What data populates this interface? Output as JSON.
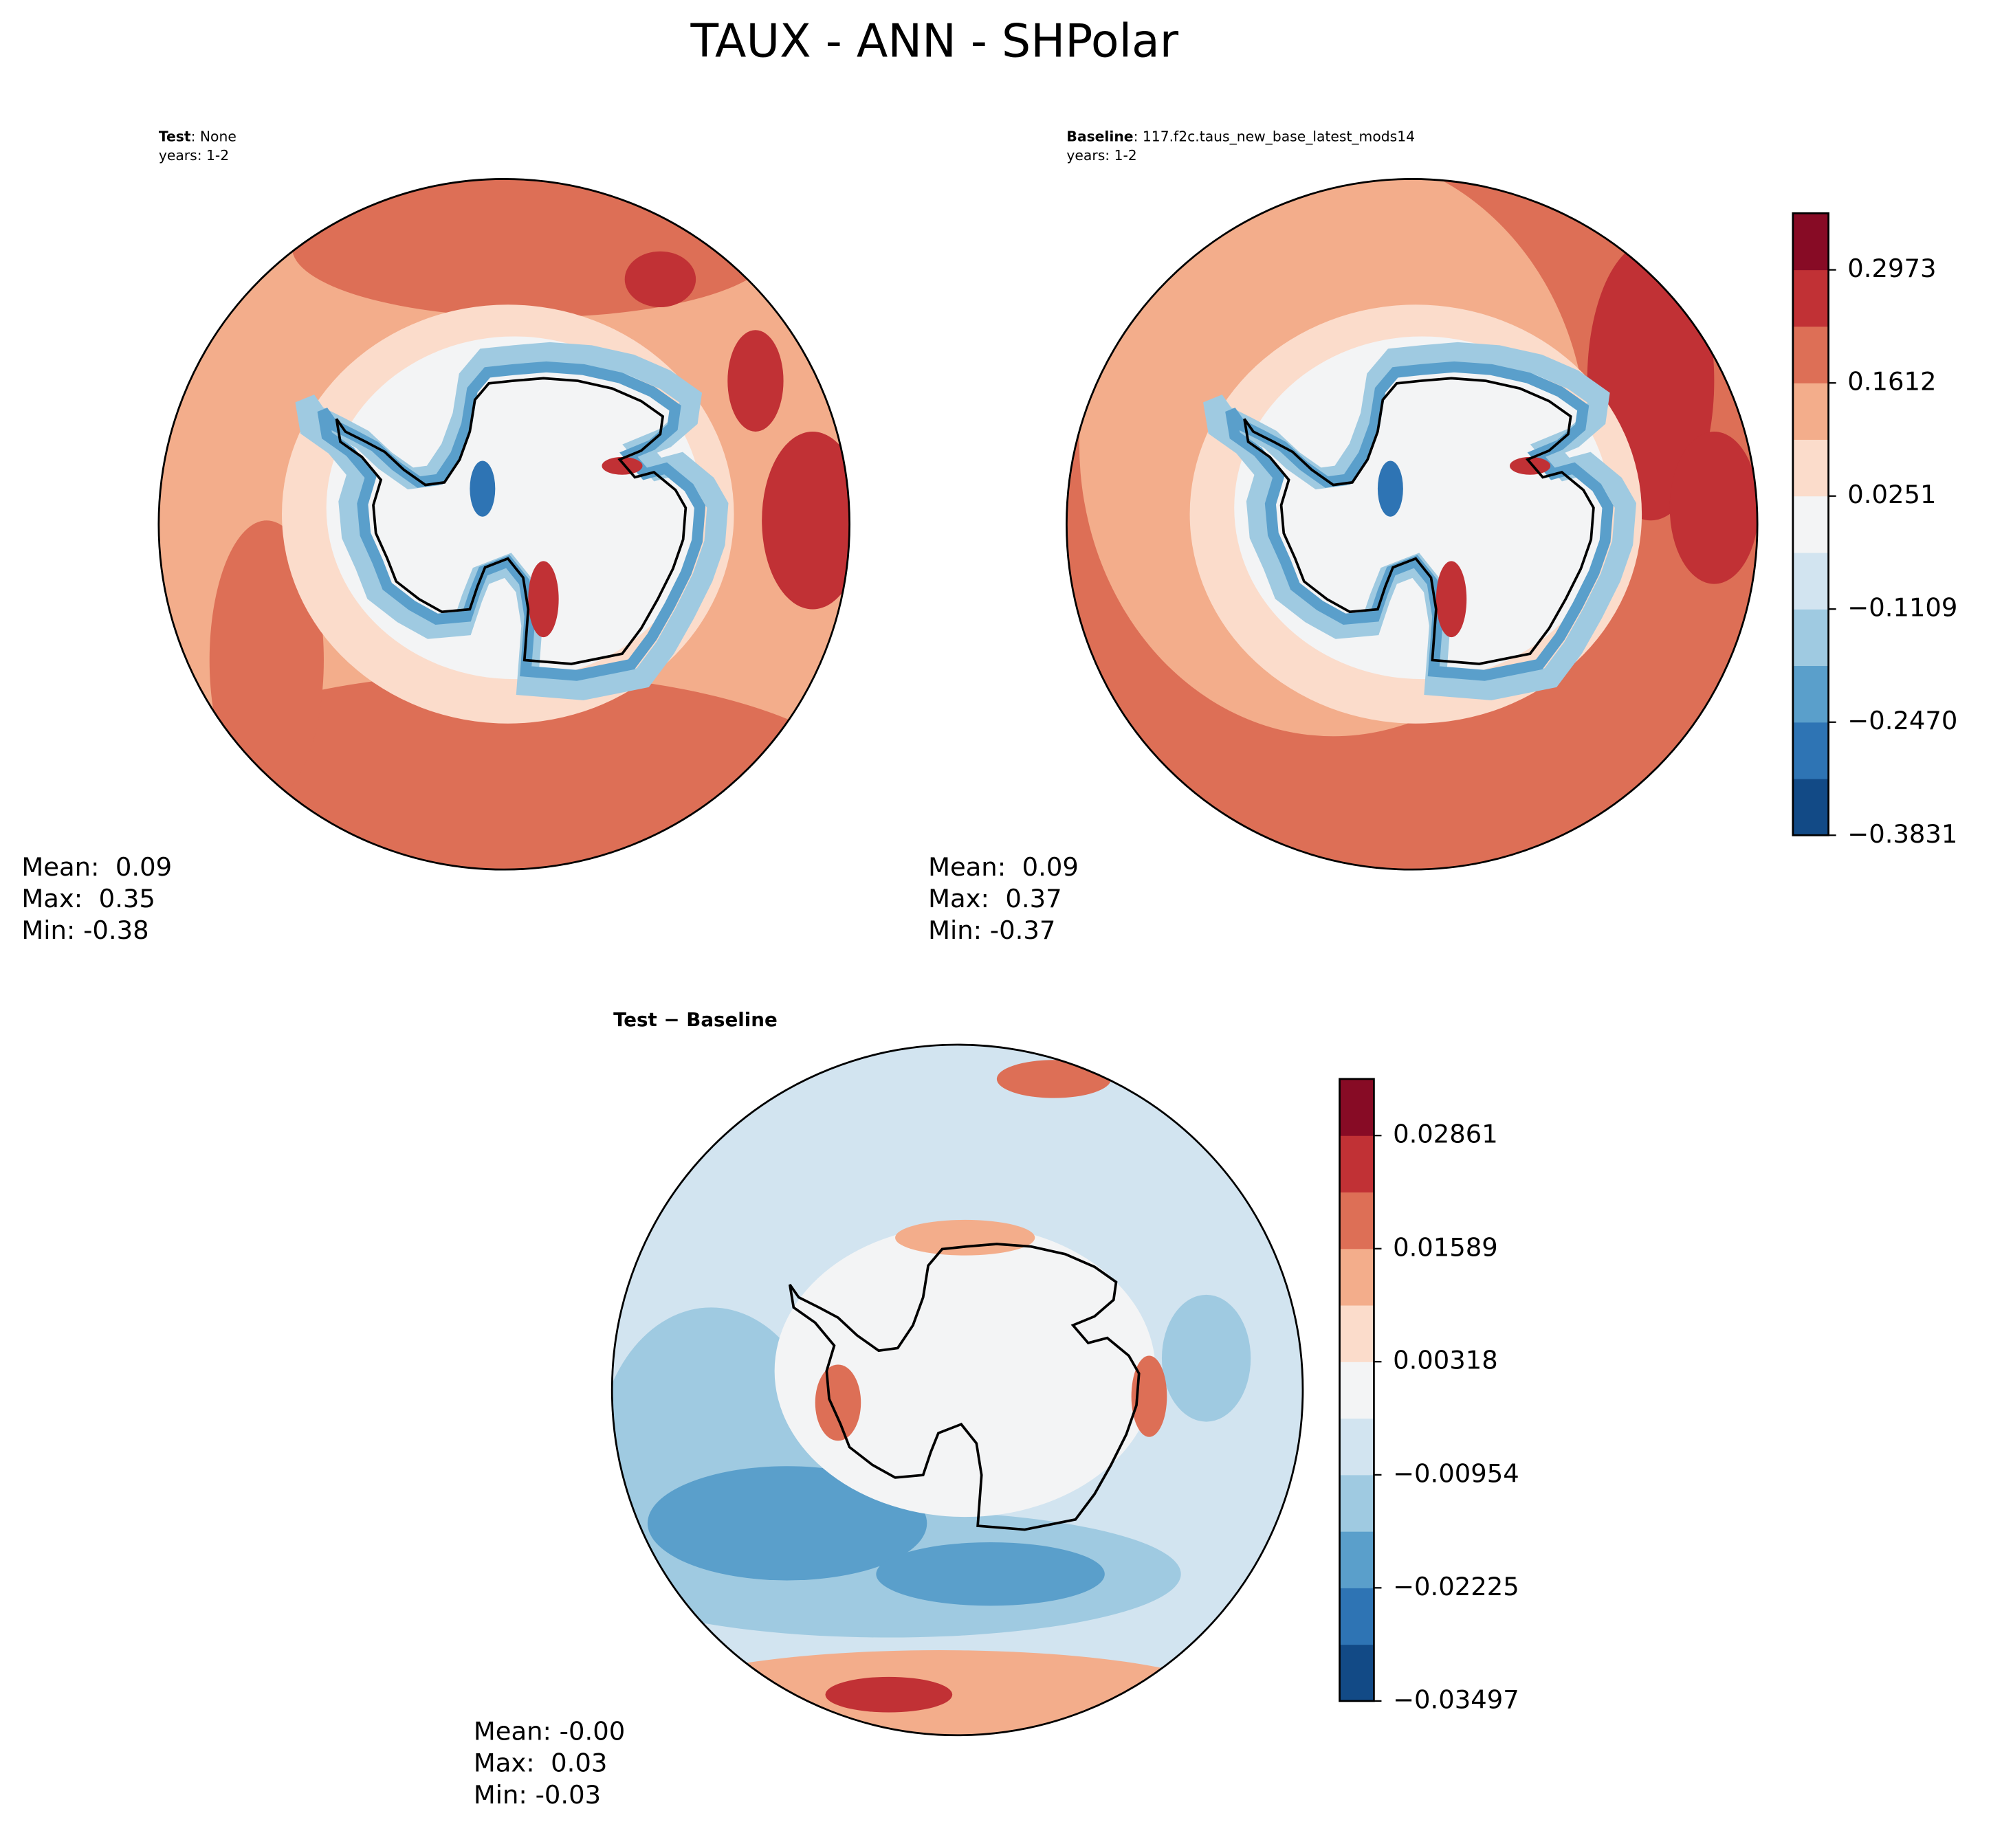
{
  "title": "TAUX - ANN - SHPolar",
  "panels": [
    {
      "label_bold": "Test",
      "label_text": ": None",
      "years": "years: 1-2",
      "stats": [
        "Mean:  0.09",
        "Max:  0.35",
        "Min: -0.38"
      ]
    },
    {
      "label_bold": "Baseline",
      "label_text": ": 117.f2c.taus_new_base_latest_mods14",
      "years": "years: 1-2",
      "stats": [
        "Mean:  0.09",
        "Max:  0.37",
        "Min: -0.37"
      ]
    },
    {
      "label_bold": "Test − Baseline",
      "stats": [
        "Mean: -0.00",
        "Max:  0.03",
        "Min: -0.03"
      ]
    }
  ],
  "colorbars": [
    {
      "ylim": [
        -0.3831,
        0.3654
      ],
      "yticks": [
        {
          "value": -0.3831,
          "label": "−0.3831"
        },
        {
          "value": -0.247,
          "label": "−0.2470"
        },
        {
          "value": -0.1109,
          "label": "−0.1109"
        },
        0.0251,
        0.1612,
        0.2973
      ],
      "colors": [
        "#124a86",
        "#2e74b4",
        "#5a9fcb",
        "#9fcae1",
        "#d2e4f0",
        "#f3f4f5",
        "#fbdccb",
        "#f3ad8b",
        "#dd6f56",
        "#c13135",
        "#870b25"
      ]
    },
    {
      "ylim": [
        -0.03497,
        0.03497
      ],
      "yticks": [
        {
          "value": -0.03497,
          "label": "−0.03497"
        },
        {
          "value": -0.02225,
          "label": "−0.02225"
        },
        {
          "value": -0.00954,
          "label": "−0.00954"
        },
        0.00318,
        0.01589,
        0.02861
      ],
      "colors": [
        "#124a86",
        "#2e74b4",
        "#5a9fcb",
        "#9fcae1",
        "#d2e4f0",
        "#f3f4f5",
        "#fbdccb",
        "#f3ad8b",
        "#dd6f56",
        "#c13135",
        "#870b25"
      ]
    }
  ]
}
